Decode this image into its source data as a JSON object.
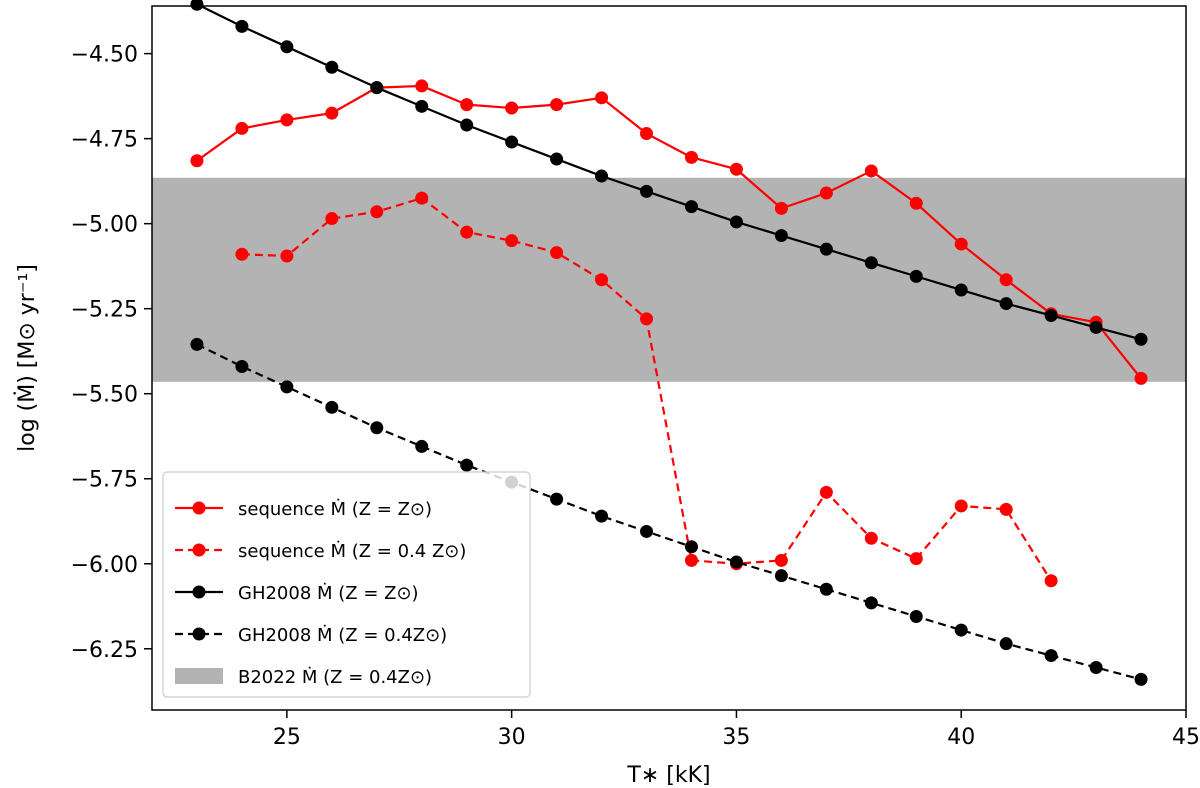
{
  "chart_data": {
    "type": "line",
    "xlabel": "T∗ [kK]",
    "ylabel": "log (Ṁ) [M⊙ yr⁻¹]",
    "xlim": [
      22,
      45
    ],
    "ylim": [
      -6.43,
      -4.36
    ],
    "xticks": [
      25,
      30,
      35,
      40,
      45
    ],
    "yticks": [
      -4.5,
      -4.75,
      -5.0,
      -5.25,
      -5.5,
      -5.75,
      -6.0,
      -6.25
    ],
    "xtick_labels": [
      "25",
      "30",
      "35",
      "40",
      "45"
    ],
    "ytick_labels": [
      "−4.50",
      "−4.75",
      "−5.00",
      "−5.25",
      "−5.50",
      "−5.75",
      "−6.00",
      "−6.25"
    ],
    "grid": false,
    "legend_position": "lower-left",
    "band": {
      "name": "B2022 Ṁ (Z = 0.4Z⊙)",
      "y_range": [
        -5.465,
        -4.865
      ],
      "color": "#b3b3b3"
    },
    "series": [
      {
        "name": "sequence Ṁ (Z = Z⊙)",
        "color": "#ff0000",
        "dash": "solid",
        "x": [
          23,
          24,
          25,
          26,
          27,
          28,
          29,
          30,
          31,
          32,
          33,
          34,
          35,
          36,
          37,
          38,
          39,
          40,
          41,
          42,
          43,
          44
        ],
        "y": [
          -4.815,
          -4.72,
          -4.695,
          -4.675,
          -4.6,
          -4.595,
          -4.65,
          -4.66,
          -4.65,
          -4.63,
          -4.735,
          -4.805,
          -4.84,
          -4.955,
          -4.91,
          -4.845,
          -4.94,
          -5.06,
          -5.165,
          -5.265,
          -5.29,
          -5.455
        ]
      },
      {
        "name": "sequence Ṁ (Z = 0.4 Z⊙)",
        "color": "#ff0000",
        "dash": "dashed",
        "x": [
          24,
          25,
          26,
          27,
          28,
          29,
          30,
          31,
          32,
          33,
          34,
          35,
          36,
          37,
          38,
          39,
          40,
          41,
          42
        ],
        "y": [
          -5.09,
          -5.095,
          -4.985,
          -4.965,
          -4.925,
          -5.025,
          -5.05,
          -5.085,
          -5.165,
          -5.28,
          -5.99,
          -6.0,
          -5.99,
          -5.79,
          -5.925,
          -5.985,
          -5.83,
          -5.84,
          -6.05
        ]
      },
      {
        "name": "GH2008 Ṁ (Z = Z⊙)",
        "color": "#000000",
        "dash": "solid",
        "x": [
          23,
          24,
          25,
          26,
          27,
          28,
          29,
          30,
          31,
          32,
          33,
          34,
          35,
          36,
          37,
          38,
          39,
          40,
          41,
          42,
          43,
          44
        ],
        "y": [
          -4.355,
          -4.42,
          -4.48,
          -4.54,
          -4.6,
          -4.655,
          -4.71,
          -4.76,
          -4.81,
          -4.86,
          -4.905,
          -4.95,
          -4.995,
          -5.035,
          -5.075,
          -5.115,
          -5.155,
          -5.195,
          -5.235,
          -5.27,
          -5.305,
          -5.34
        ]
      },
      {
        "name": "GH2008 Ṁ (Z = 0.4Z⊙)",
        "color": "#000000",
        "dash": "dashed",
        "x": [
          23,
          24,
          25,
          26,
          27,
          28,
          29,
          30,
          31,
          32,
          33,
          34,
          35,
          36,
          37,
          38,
          39,
          40,
          41,
          42,
          43,
          44
        ],
        "y": [
          -5.355,
          -5.42,
          -5.48,
          -5.54,
          -5.6,
          -5.655,
          -5.71,
          -5.76,
          -5.81,
          -5.86,
          -5.905,
          -5.95,
          -5.995,
          -6.035,
          -6.075,
          -6.115,
          -6.155,
          -6.195,
          -6.235,
          -6.27,
          -6.305,
          -6.34
        ]
      }
    ]
  }
}
